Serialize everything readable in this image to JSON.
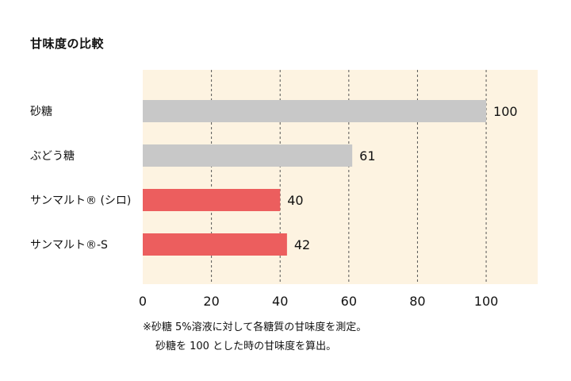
{
  "title": "甘味度の比較",
  "chart_data": {
    "type": "bar",
    "orientation": "horizontal",
    "title": "甘味度の比較",
    "categories": [
      "砂糖",
      "ぶどう糖",
      "サンマルト® (シロ)",
      "サンマルト®-S"
    ],
    "values": [
      100,
      61,
      40,
      42
    ],
    "bar_colors": [
      "#c8c8c8",
      "#c8c8c8",
      "#ec5e5e",
      "#ec5e5e"
    ],
    "xlim": [
      0,
      115
    ],
    "xticks": [
      0,
      20,
      40,
      60,
      80,
      100
    ],
    "grid": "vertical-dashed",
    "plot_background": "#fdf3e1"
  },
  "notes": [
    "※砂糖 5%溶液に対して各糖質の甘味度を測定。",
    "砂糖を 100 とした時の甘味度を算出。"
  ]
}
